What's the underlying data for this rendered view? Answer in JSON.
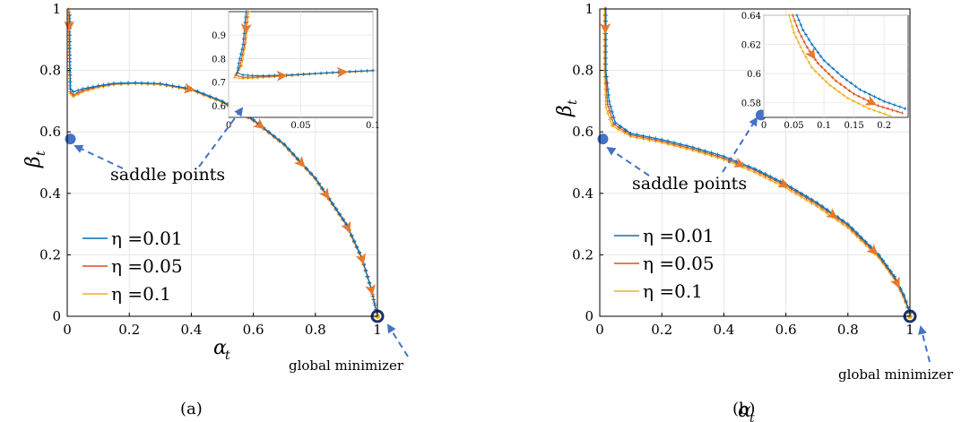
{
  "colors": {
    "s001": "#0072BD",
    "s005": "#D95319",
    "s01": "#EDB120",
    "arrow": "#E8782A",
    "marker": "#4472C4",
    "grid": "#e6e6e6"
  },
  "chart_data": [
    {
      "type": "line",
      "caption": "(a)",
      "xlabel": "α",
      "xlabel_sub": "t",
      "ylabel": "β",
      "ylabel_sub": "t",
      "xlim": [
        0,
        1
      ],
      "ylim": [
        0,
        1
      ],
      "xticks": [
        "0",
        "0.2",
        "0.4",
        "0.6",
        "0.8",
        "1"
      ],
      "yticks": [
        "0",
        "0.2",
        "0.4",
        "0.6",
        "0.8",
        "1"
      ],
      "grid": true,
      "legend_position": "bottom-left",
      "annotations": [
        "saddle points",
        "global minimizer"
      ],
      "saddle_points": [
        [
          0.01,
          0.577
        ],
        [
          0.57,
          0.7
        ]
      ],
      "global_minimizer": [
        1.0,
        0.0
      ],
      "series": [
        {
          "name": "η =0.01",
          "x": [
            0.008,
            0.008,
            0.01,
            0.02,
            0.05,
            0.1,
            0.15,
            0.22,
            0.3,
            0.4,
            0.5,
            0.6,
            0.7,
            0.8,
            0.9,
            0.95,
            0.98,
            1.0
          ],
          "y": [
            0.98,
            0.85,
            0.74,
            0.73,
            0.74,
            0.75,
            0.758,
            0.76,
            0.757,
            0.74,
            0.7,
            0.64,
            0.56,
            0.45,
            0.3,
            0.19,
            0.09,
            0.0
          ]
        },
        {
          "name": "η =0.05",
          "x": [
            0.006,
            0.007,
            0.01,
            0.02,
            0.05,
            0.1,
            0.15,
            0.22,
            0.3,
            0.4,
            0.5,
            0.6,
            0.7,
            0.8,
            0.9,
            0.95,
            0.98,
            1.0
          ],
          "y": [
            0.99,
            0.86,
            0.73,
            0.72,
            0.735,
            0.748,
            0.756,
            0.759,
            0.756,
            0.738,
            0.698,
            0.638,
            0.558,
            0.448,
            0.298,
            0.188,
            0.088,
            0.0
          ]
        },
        {
          "name": "η =0.1",
          "x": [
            0.005,
            0.006,
            0.01,
            0.02,
            0.05,
            0.1,
            0.15,
            0.22,
            0.3,
            0.4,
            0.5,
            0.6,
            0.7,
            0.8,
            0.9,
            0.95,
            0.98,
            1.0
          ],
          "y": [
            1.0,
            0.87,
            0.725,
            0.715,
            0.73,
            0.745,
            0.754,
            0.757,
            0.754,
            0.736,
            0.696,
            0.636,
            0.556,
            0.446,
            0.296,
            0.186,
            0.086,
            0.0
          ]
        }
      ],
      "inset": {
        "xlim": [
          0,
          0.1
        ],
        "ylim": [
          0.55,
          1.0
        ],
        "xticks": [
          "0",
          "0.05",
          "0.1"
        ],
        "yticks": [
          "0.6",
          "0.7",
          "0.8",
          "0.9"
        ],
        "series": [
          {
            "name": "η =0.01",
            "x": [
              0.012,
              0.01,
              0.007,
              0.006,
              0.01,
              0.02,
              0.04,
              0.06,
              0.08,
              0.1
            ],
            "y": [
              1.0,
              0.86,
              0.78,
              0.74,
              0.73,
              0.727,
              0.73,
              0.737,
              0.744,
              0.75
            ]
          },
          {
            "name": "η =0.05",
            "x": [
              0.013,
              0.011,
              0.008,
              0.005,
              0.01,
              0.02,
              0.04,
              0.06,
              0.08,
              0.1
            ],
            "y": [
              1.0,
              0.86,
              0.77,
              0.73,
              0.72,
              0.722,
              0.728,
              0.736,
              0.743,
              0.749
            ]
          },
          {
            "name": "η =0.1",
            "x": [
              0.014,
              0.012,
              0.009,
              0.004,
              0.01,
              0.02,
              0.04,
              0.06,
              0.08,
              0.1
            ],
            "y": [
              1.0,
              0.87,
              0.77,
              0.72,
              0.715,
              0.718,
              0.726,
              0.735,
              0.742,
              0.748
            ]
          }
        ]
      }
    },
    {
      "type": "line",
      "caption": "(b)",
      "xlabel": "α",
      "xlabel_sub": "t",
      "ylabel": "β",
      "ylabel_sub": "t",
      "xlim": [
        0,
        1
      ],
      "ylim": [
        0,
        1
      ],
      "xticks": [
        "0",
        "0.2",
        "0.4",
        "0.6",
        "0.8",
        "1"
      ],
      "yticks": [
        "0",
        "0.2",
        "0.4",
        "0.6",
        "0.8",
        "1"
      ],
      "grid": true,
      "legend_position": "bottom-left",
      "annotations": [
        "saddle points",
        "global minimizer"
      ],
      "saddle_points": [
        [
          0.01,
          0.577
        ],
        [
          0.52,
          0.655
        ]
      ],
      "global_minimizer": [
        1.0,
        0.0
      ],
      "series": [
        {
          "name": "η =0.01",
          "x": [
            0.02,
            0.02,
            0.03,
            0.05,
            0.1,
            0.2,
            0.3,
            0.4,
            0.5,
            0.6,
            0.7,
            0.8,
            0.9,
            0.95,
            0.98,
            1.0
          ],
          "y": [
            1.0,
            0.8,
            0.7,
            0.63,
            0.595,
            0.575,
            0.55,
            0.52,
            0.48,
            0.43,
            0.37,
            0.3,
            0.2,
            0.13,
            0.07,
            0.01
          ]
        },
        {
          "name": "η =0.05",
          "x": [
            0.018,
            0.018,
            0.025,
            0.045,
            0.1,
            0.2,
            0.3,
            0.4,
            0.5,
            0.6,
            0.7,
            0.8,
            0.9,
            0.95,
            0.98,
            1.0
          ],
          "y": [
            1.0,
            0.8,
            0.69,
            0.625,
            0.59,
            0.57,
            0.545,
            0.515,
            0.475,
            0.425,
            0.365,
            0.295,
            0.195,
            0.125,
            0.065,
            0.01
          ]
        },
        {
          "name": "η =0.1",
          "x": [
            0.015,
            0.015,
            0.02,
            0.04,
            0.1,
            0.2,
            0.3,
            0.4,
            0.5,
            0.6,
            0.7,
            0.8,
            0.9,
            0.95,
            0.98,
            1.0
          ],
          "y": [
            1.0,
            0.8,
            0.68,
            0.62,
            0.585,
            0.565,
            0.54,
            0.51,
            0.468,
            0.418,
            0.358,
            0.288,
            0.19,
            0.12,
            0.06,
            0.01
          ]
        }
      ],
      "inset": {
        "xlim": [
          0,
          0.24
        ],
        "ylim": [
          0.57,
          0.64
        ],
        "xticks": [
          "0",
          "0.05",
          "0.1",
          "0.15",
          "0.2"
        ],
        "yticks": [
          "0.58",
          "0.6",
          "0.62",
          "0.64"
        ],
        "series": [
          {
            "name": "η =0.01",
            "x": [
              0.055,
              0.065,
              0.08,
              0.1,
              0.13,
              0.16,
              0.2,
              0.235
            ],
            "y": [
              0.64,
              0.63,
              0.62,
              0.609,
              0.598,
              0.589,
              0.581,
              0.576
            ]
          },
          {
            "name": "η =0.05",
            "x": [
              0.048,
              0.058,
              0.072,
              0.09,
              0.12,
              0.15,
              0.19,
              0.23
            ],
            "y": [
              0.64,
              0.629,
              0.618,
              0.607,
              0.595,
              0.586,
              0.578,
              0.573
            ]
          },
          {
            "name": "η =0.1",
            "x": [
              0.042,
              0.05,
              0.065,
              0.08,
              0.11,
              0.14,
              0.175,
              0.21
            ],
            "y": [
              0.64,
              0.628,
              0.615,
              0.604,
              0.592,
              0.583,
              0.576,
              0.571
            ]
          }
        ]
      }
    }
  ]
}
